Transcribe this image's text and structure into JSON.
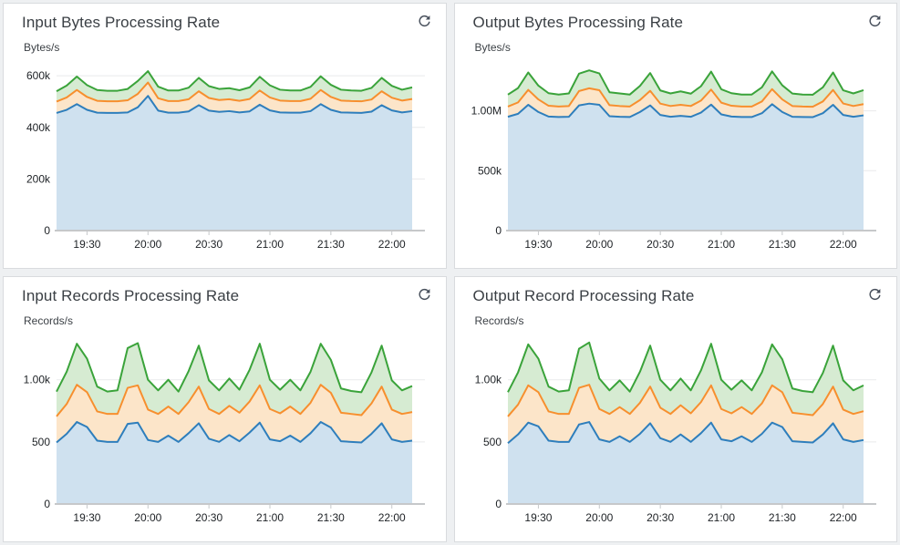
{
  "colors": {
    "series_strokes": [
      "#2e7ebc",
      "#f78f2e",
      "#3aa33a"
    ],
    "series_fills": [
      "#cfe1ef",
      "#fce5c9",
      "#d6ebd2"
    ],
    "gridline": "#e9eaeb",
    "axis_line": "#c6c8ca",
    "tick_text": "#1d2125",
    "refresh_icon": "#464e5a"
  },
  "refresh": {
    "icon": "refresh-icon"
  },
  "chart_data": [
    {
      "type": "area",
      "stacked": true,
      "title": "Input Bytes Processing Rate",
      "ylabel": "Bytes/s",
      "legend": "none",
      "grid": true,
      "x_start": "19:15",
      "x_step_minutes": 5,
      "x_tick_labels": [
        "19:30",
        "20:00",
        "20:30",
        "21:00",
        "21:30",
        "22:00"
      ],
      "x_tick_indices": [
        3,
        9,
        15,
        21,
        27,
        33
      ],
      "ymax": 650000,
      "y_ticks": [
        {
          "v": 0,
          "label": "0"
        },
        {
          "v": 200000,
          "label": "200k"
        },
        {
          "v": 400000,
          "label": "400k"
        },
        {
          "v": 600000,
          "label": "600k"
        }
      ],
      "series": [
        {
          "name": "blue",
          "values": [
            456000,
            468000,
            490000,
            468000,
            457000,
            456000,
            456000,
            458000,
            478000,
            522000,
            465000,
            457000,
            457000,
            462000,
            486000,
            465000,
            460000,
            463000,
            458000,
            462000,
            488000,
            466000,
            458000,
            457000,
            457000,
            463000,
            490000,
            468000,
            458000,
            457000,
            456000,
            461000,
            486000,
            466000,
            458000,
            463000
          ]
        },
        {
          "name": "orange",
          "values": [
            44000,
            48000,
            55000,
            50000,
            46000,
            45000,
            45000,
            47000,
            52000,
            52000,
            48000,
            45000,
            45000,
            47000,
            54000,
            49000,
            46000,
            46000,
            45000,
            48000,
            55000,
            50000,
            46000,
            45000,
            45000,
            48000,
            55000,
            50000,
            46000,
            45000,
            45000,
            47000,
            54000,
            49000,
            46000,
            47000
          ]
        },
        {
          "name": "green",
          "values": [
            40000,
            46000,
            52000,
            46000,
            42000,
            41000,
            41000,
            44000,
            50000,
            44000,
            45000,
            41000,
            41000,
            45000,
            52000,
            46000,
            43000,
            43000,
            41000,
            45000,
            53000,
            47000,
            42000,
            41000,
            41000,
            46000,
            53000,
            47000,
            42000,
            41000,
            41000,
            45000,
            52000,
            46000,
            42000,
            45000
          ]
        }
      ]
    },
    {
      "type": "area",
      "stacked": true,
      "title": "Output Bytes Processing Rate",
      "ylabel": "Bytes/s",
      "legend": "none",
      "grid": true,
      "x_start": "19:15",
      "x_step_minutes": 5,
      "x_tick_labels": [
        "19:30",
        "20:00",
        "20:30",
        "21:00",
        "21:30",
        "22:00"
      ],
      "x_tick_indices": [
        3,
        9,
        15,
        21,
        27,
        33
      ],
      "ymax": 1400000,
      "y_ticks": [
        {
          "v": 0,
          "label": "0"
        },
        {
          "v": 500000,
          "label": "500k"
        },
        {
          "v": 1000000,
          "label": "1.00M"
        }
      ],
      "series": [
        {
          "name": "blue",
          "values": [
            950000,
            975000,
            1050000,
            990000,
            952000,
            948000,
            950000,
            1045000,
            1060000,
            1050000,
            955000,
            950000,
            948000,
            990000,
            1045000,
            965000,
            950000,
            958000,
            950000,
            985000,
            1052000,
            970000,
            952000,
            948000,
            948000,
            980000,
            1055000,
            990000,
            950000,
            948000,
            947000,
            980000,
            1050000,
            965000,
            950000,
            962000
          ]
        },
        {
          "name": "orange",
          "values": [
            85000,
            95000,
            125000,
            105000,
            90000,
            88000,
            90000,
            120000,
            128000,
            122000,
            92000,
            90000,
            88000,
            100000,
            122000,
            95000,
            90000,
            92000,
            90000,
            100000,
            125000,
            98000,
            90000,
            88000,
            88000,
            98000,
            126000,
            105000,
            90000,
            88000,
            87000,
            98000,
            124000,
            96000,
            90000,
            94000
          ]
        },
        {
          "name": "green",
          "values": [
            100000,
            120000,
            145000,
            115000,
            105000,
            100000,
            105000,
            145000,
            150000,
            140000,
            108000,
            105000,
            100000,
            118000,
            148000,
            110000,
            105000,
            112000,
            103000,
            120000,
            150000,
            112000,
            105000,
            100000,
            100000,
            118000,
            148000,
            118000,
            104000,
            100000,
            100000,
            118000,
            146000,
            110000,
            105000,
            116000
          ]
        }
      ]
    },
    {
      "type": "area",
      "stacked": true,
      "title": "Input Records Processing Rate",
      "ylabel": "Records/s",
      "legend": "none",
      "grid": true,
      "x_start": "19:15",
      "x_step_minutes": 5,
      "x_tick_labels": [
        "19:30",
        "20:00",
        "20:30",
        "21:00",
        "21:30",
        "22:00"
      ],
      "x_tick_indices": [
        3,
        9,
        15,
        21,
        27,
        33
      ],
      "ymax": 1350,
      "y_ticks": [
        {
          "v": 0,
          "label": "0"
        },
        {
          "v": 500,
          "label": "500"
        },
        {
          "v": 1000,
          "label": "1.00k"
        }
      ],
      "series": [
        {
          "name": "blue",
          "values": [
            495,
            565,
            660,
            620,
            510,
            500,
            500,
            645,
            655,
            515,
            500,
            550,
            500,
            570,
            650,
            525,
            500,
            555,
            505,
            575,
            655,
            520,
            505,
            550,
            500,
            570,
            660,
            615,
            505,
            500,
            495,
            565,
            650,
            520,
            500,
            510
          ]
        },
        {
          "name": "orange",
          "values": [
            210,
            240,
            300,
            280,
            235,
            225,
            225,
            290,
            300,
            245,
            225,
            235,
            225,
            250,
            295,
            240,
            225,
            235,
            230,
            250,
            300,
            245,
            225,
            235,
            225,
            245,
            300,
            280,
            230,
            225,
            220,
            245,
            295,
            240,
            225,
            230
          ]
        },
        {
          "name": "green",
          "values": [
            200,
            260,
            330,
            270,
            200,
            180,
            190,
            320,
            340,
            240,
            190,
            215,
            180,
            250,
            330,
            230,
            190,
            220,
            185,
            255,
            335,
            235,
            190,
            215,
            190,
            250,
            330,
            265,
            195,
            185,
            185,
            250,
            330,
            235,
            190,
            210
          ]
        }
      ]
    },
    {
      "type": "area",
      "stacked": true,
      "title": "Output Record Processing Rate",
      "ylabel": "Records/s",
      "legend": "none",
      "grid": true,
      "x_start": "19:15",
      "x_step_minutes": 5,
      "x_tick_labels": [
        "19:30",
        "20:00",
        "20:30",
        "21:00",
        "21:30",
        "22:00"
      ],
      "x_tick_indices": [
        3,
        9,
        15,
        21,
        27,
        33
      ],
      "ymax": 1350,
      "y_ticks": [
        {
          "v": 0,
          "label": "0"
        },
        {
          "v": 500,
          "label": "500"
        },
        {
          "v": 1000,
          "label": "1.00k"
        }
      ],
      "series": [
        {
          "name": "blue",
          "values": [
            490,
            560,
            655,
            625,
            510,
            500,
            500,
            640,
            660,
            520,
            500,
            545,
            500,
            565,
            650,
            530,
            500,
            560,
            500,
            570,
            655,
            520,
            505,
            545,
            500,
            565,
            655,
            620,
            505,
            500,
            495,
            560,
            650,
            520,
            500,
            515
          ]
        },
        {
          "name": "orange",
          "values": [
            215,
            240,
            300,
            275,
            235,
            225,
            225,
            295,
            300,
            245,
            225,
            235,
            225,
            250,
            295,
            245,
            225,
            235,
            230,
            250,
            300,
            245,
            225,
            235,
            225,
            245,
            300,
            280,
            230,
            225,
            220,
            245,
            295,
            240,
            225,
            232
          ]
        },
        {
          "name": "green",
          "values": [
            195,
            260,
            330,
            270,
            200,
            180,
            190,
            315,
            340,
            245,
            190,
            215,
            180,
            250,
            330,
            225,
            190,
            215,
            185,
            255,
            335,
            235,
            190,
            215,
            190,
            250,
            330,
            265,
            195,
            185,
            185,
            250,
            330,
            235,
            190,
            208
          ]
        }
      ]
    }
  ]
}
